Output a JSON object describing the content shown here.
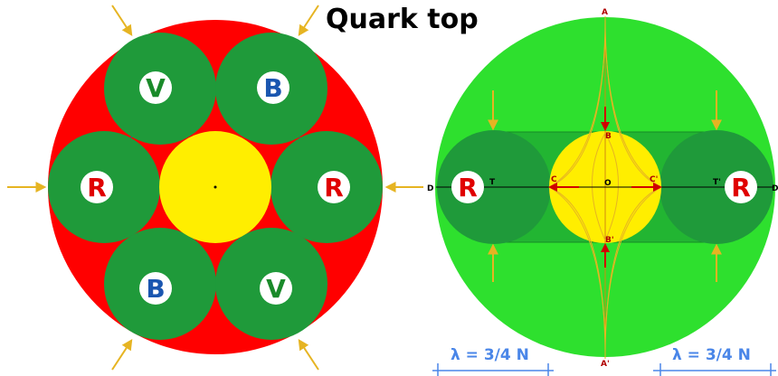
{
  "title": "Quark top",
  "colors": {
    "red": "#ff0000",
    "green_dark": "#1f9a3a",
    "green_light": "#2ee02e",
    "yellow": "#ffee00",
    "arrow": "#e6b422",
    "label_red": "#e00000",
    "label_green": "#1a8a2a",
    "label_blue": "#1a56b0",
    "lambda_blue": "#4a86e8"
  },
  "left_diagram": {
    "quarks": [
      "V",
      "B",
      "R",
      "R",
      "B",
      "V"
    ]
  },
  "right_diagram": {
    "quarks": [
      "R",
      "R"
    ],
    "points": {
      "A": "A",
      "A_prime": "A'",
      "B": "B",
      "B_prime": "B'",
      "C": "C",
      "C_prime": "C'",
      "O": "O",
      "T": "T",
      "T_prime": "T'",
      "D_left": "D",
      "D_right": "D"
    }
  },
  "lambda_labels": [
    "λ = 3/4 N",
    "λ = 3/4 N"
  ]
}
